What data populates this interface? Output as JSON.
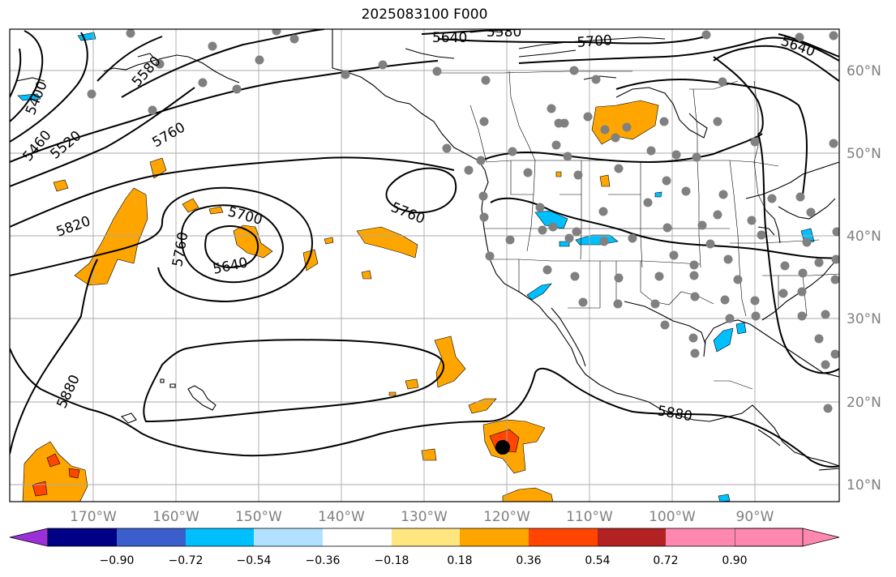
{
  "title": "2025083100 F000",
  "map": {
    "lon_labels": [
      "170°W",
      "160°W",
      "150°W",
      "140°W",
      "130°W",
      "120°W",
      "110°W",
      "100°W",
      "90°W"
    ],
    "lat_labels": [
      "60°N",
      "50°N",
      "40°N",
      "30°N",
      "20°N",
      "10°N"
    ],
    "contour_labels": [
      "5640",
      "5580",
      "5700",
      "5640",
      "5400",
      "5460",
      "5520",
      "5580",
      "5760",
      "5820",
      "5700",
      "5760",
      "5640",
      "5760",
      "5880",
      "5880"
    ],
    "layers": [
      "coastlines",
      "state-borders",
      "geopotential-height-contours",
      "shaded-field",
      "station-dots"
    ],
    "contour_color": "#000000",
    "station_dot_color": "#808080",
    "marker_color": "#000000"
  },
  "colorbar": {
    "tick_labels": [
      "−0.90",
      "−0.72",
      "−0.54",
      "−0.36",
      "−0.18",
      "0.18",
      "0.36",
      "0.54",
      "0.72",
      "0.90"
    ],
    "bins": [
      "#9b30d9",
      "#000086",
      "#3a5fcd",
      "#00bfff",
      "#b0e2ff",
      "#ffffff",
      "#ffe680",
      "#ffa500",
      "#ff4500",
      "#b22222",
      "#ff88b0"
    ]
  }
}
